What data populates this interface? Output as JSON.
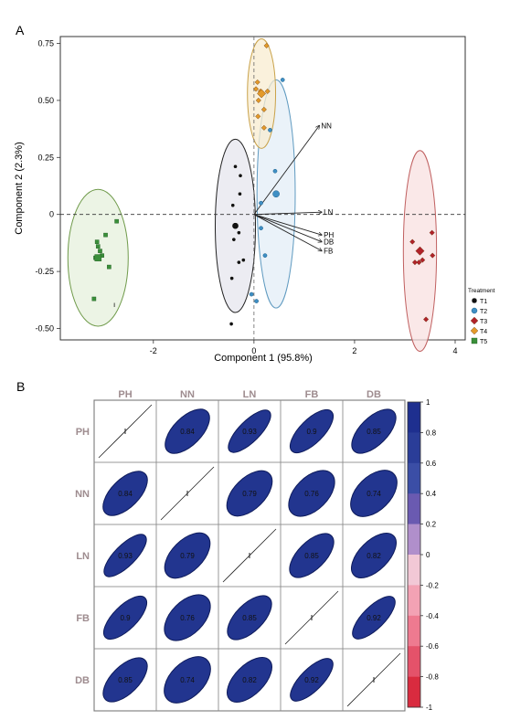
{
  "figure": {
    "panel_a_label": "A",
    "panel_b_label": "B"
  },
  "chart_data": [
    {
      "type": "scatter",
      "title": "",
      "xlabel": "Component 1 (95.8%)",
      "ylabel": "Component 2 (2.3%)",
      "xlim": [
        -3.85,
        4.2
      ],
      "ylim": [
        -0.55,
        0.78
      ],
      "xticks": [
        -2,
        0,
        2,
        4
      ],
      "xtick_labels": [
        "-2",
        "0",
        "2",
        "4"
      ],
      "yticks": [
        -0.5,
        -0.25,
        0,
        0.25,
        0.5,
        0.75
      ],
      "ytick_labels": [
        "-0.50",
        "-0.25",
        "0",
        "0.25",
        "0.50",
        "0.75"
      ],
      "reference_lines": {
        "x": 0,
        "y": 0,
        "style": "dashed"
      },
      "legend": {
        "title": "Treatment",
        "position": "right",
        "entries": [
          {
            "label": "T1",
            "color": "#111111",
            "marker": "circle"
          },
          {
            "label": "T2",
            "color": "#3f8fc4",
            "marker": "circle"
          },
          {
            "label": "T3",
            "color": "#b1222a",
            "marker": "diamond"
          },
          {
            "label": "T4",
            "color": "#e39a2a",
            "marker": "diamond"
          },
          {
            "label": "T5",
            "color": "#3a8f3a",
            "marker": "square"
          }
        ]
      },
      "ellipses": [
        {
          "series": "T1",
          "center": [
            -0.37,
            -0.05
          ],
          "semi_axes": [
            0.4,
            0.38
          ],
          "fill": "#e6e6ee",
          "stroke": "#222222"
        },
        {
          "series": "T2",
          "center": [
            0.44,
            0.09
          ],
          "semi_axes": [
            0.38,
            0.5
          ],
          "fill": "#e3eef7",
          "stroke": "#5f9ac0"
        },
        {
          "series": "T3",
          "center": [
            3.3,
            -0.16
          ],
          "semi_axes": [
            0.33,
            0.44
          ],
          "fill": "#f8e0e0",
          "stroke": "#c06060"
        },
        {
          "series": "T4",
          "center": [
            0.15,
            0.53
          ],
          "semi_axes": [
            0.28,
            0.24
          ],
          "fill": "#f8ecd0",
          "stroke": "#c9a24a"
        },
        {
          "series": "T5",
          "center": [
            -3.1,
            -0.19
          ],
          "semi_axes": [
            0.6,
            0.3
          ],
          "fill": "#e6f0dc",
          "stroke": "#6f9a4a"
        }
      ],
      "series": [
        {
          "name": "T1",
          "points": [
            [
              -0.37,
              0.21
            ],
            [
              -0.27,
              0.17
            ],
            [
              -0.28,
              0.09
            ],
            [
              -0.42,
              0.04
            ],
            [
              -0.3,
              -0.08
            ],
            [
              -0.4,
              -0.11
            ],
            [
              -0.3,
              -0.21
            ],
            [
              -0.44,
              -0.28
            ],
            [
              -0.45,
              -0.48
            ],
            [
              -0.21,
              -0.2
            ]
          ]
        },
        {
          "name": "T2",
          "points": [
            [
              0.57,
              0.59
            ],
            [
              0.32,
              0.37
            ],
            [
              0.42,
              0.19
            ],
            [
              0.14,
              0.05
            ],
            [
              0.14,
              -0.06
            ],
            [
              0.05,
              -0.38
            ],
            [
              -0.05,
              -0.35
            ],
            [
              0.22,
              -0.18
            ]
          ]
        },
        {
          "name": "T3",
          "points": [
            [
              3.15,
              -0.12
            ],
            [
              3.54,
              -0.08
            ],
            [
              3.55,
              -0.18
            ],
            [
              3.35,
              -0.2
            ],
            [
              3.28,
              -0.21
            ],
            [
              3.42,
              -0.46
            ],
            [
              3.2,
              -0.21
            ]
          ]
        },
        {
          "name": "T4",
          "points": [
            [
              0.25,
              0.74
            ],
            [
              0.07,
              0.58
            ],
            [
              0.04,
              0.55
            ],
            [
              0.13,
              0.54
            ],
            [
              0.27,
              0.54
            ],
            [
              0.09,
              0.5
            ],
            [
              0.2,
              0.46
            ],
            [
              0.08,
              0.43
            ],
            [
              0.2,
              0.38
            ]
          ]
        },
        {
          "name": "T5",
          "points": [
            [
              -2.73,
              -0.03
            ],
            [
              -2.95,
              -0.09
            ],
            [
              -3.12,
              -0.12
            ],
            [
              -3.1,
              -0.14
            ],
            [
              -3.06,
              -0.16
            ],
            [
              -3.02,
              -0.18
            ],
            [
              -3.15,
              -0.19
            ],
            [
              -3.18,
              -0.37
            ],
            [
              -2.88,
              -0.23
            ]
          ]
        }
      ],
      "loadings": [
        {
          "label": "NN",
          "end": [
            1.3,
            0.39
          ]
        },
        {
          "label": "LN",
          "end": [
            1.35,
            0.01
          ]
        },
        {
          "label": "PH",
          "end": [
            1.35,
            -0.09
          ]
        },
        {
          "label": "DB",
          "end": [
            1.35,
            -0.12
          ]
        },
        {
          "label": "FB",
          "end": [
            1.35,
            -0.16
          ]
        }
      ]
    },
    {
      "type": "heatmap",
      "title": "",
      "variables": [
        "PH",
        "NN",
        "LN",
        "FB",
        "DB"
      ],
      "matrix": [
        [
          1,
          0.84,
          0.93,
          0.9,
          0.85
        ],
        [
          0.84,
          1,
          0.79,
          0.76,
          0.74
        ],
        [
          0.93,
          0.79,
          1,
          0.85,
          0.82
        ],
        [
          0.9,
          0.76,
          0.85,
          1,
          0.92
        ],
        [
          0.85,
          0.74,
          0.82,
          0.92,
          1
        ]
      ],
      "cell_labels": [
        [
          "",
          "0.84",
          "0.93",
          "0.9",
          "0.85"
        ],
        [
          "0.84",
          "",
          "0.79",
          "0.76",
          "0.74"
        ],
        [
          "0.93",
          "0.79",
          "",
          "0.85",
          "0.82"
        ],
        [
          "0.9",
          "0.76",
          "0.85",
          "",
          "0.92"
        ],
        [
          "0.85",
          "0.74",
          "0.82",
          "0.92",
          ""
        ]
      ],
      "colorbar": {
        "position": "right",
        "range": [
          -1,
          1
        ],
        "tick_labels": [
          "1",
          "0.8",
          "0.6",
          "0.4",
          "0.2",
          "0",
          "-0.2",
          "-0.4",
          "-0.6",
          "-0.8",
          "-1"
        ],
        "colors": [
          "#1e2f8f",
          "#2a3d98",
          "#3b4ea6",
          "#6a5ab1",
          "#b08fcb",
          "#f2c8d6",
          "#f3a2b4",
          "#ee7a90",
          "#e4526a",
          "#d92b3f"
        ]
      },
      "ellipse_fill": "#22358f",
      "label_color": "#9e8c8f"
    }
  ]
}
